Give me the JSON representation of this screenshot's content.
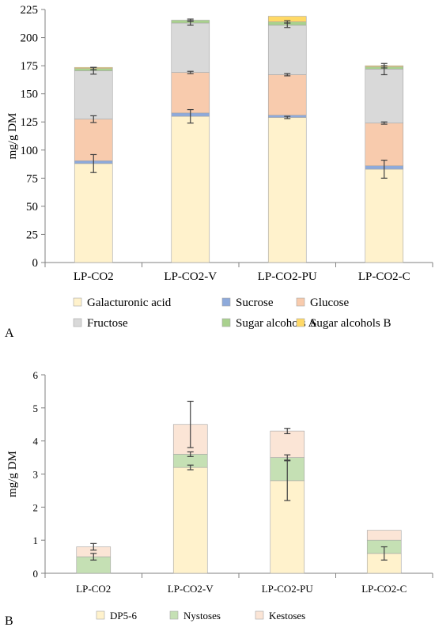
{
  "colors": {
    "Galacturonic acid": "#fff2cc",
    "Sucrose": "#8eaadb",
    "Glucose": "#f8cbad",
    "Fructose": "#d9d9d9",
    "Sugar alcohols A": "#a9d18e",
    "Sugar alcohols B": "#ffd966",
    "DP5-6": "#fff2cc",
    "Nystoses": "#c5e0b4",
    "Kestoses": "#fbe5d6",
    "axis": "#808080",
    "errorbar": "#404040"
  },
  "chart_data": [
    {
      "panel_label": "A",
      "type": "bar",
      "stacked": true,
      "ylabel": "mg/g DM",
      "xlabel": "",
      "ylim": [
        0,
        225
      ],
      "yticks": [
        0,
        25,
        50,
        75,
        100,
        125,
        150,
        175,
        200,
        225
      ],
      "categories": [
        "LP-CO2",
        "LP-CO2-V",
        "LP-CO2-PU",
        "LP-CO2-C"
      ],
      "series": [
        {
          "name": "Galacturonic acid",
          "values": [
            88,
            130,
            129,
            83
          ],
          "errors": [
            8,
            6,
            1,
            8
          ]
        },
        {
          "name": "Sucrose",
          "values": [
            2.5,
            3,
            2,
            3
          ],
          "errors": [
            null,
            null,
            null,
            null
          ]
        },
        {
          "name": "Glucose",
          "values": [
            37,
            36,
            36,
            38
          ],
          "errors": [
            3,
            1,
            1,
            1
          ]
        },
        {
          "name": "Fructose",
          "values": [
            43,
            44,
            44,
            48
          ],
          "errors": [
            3,
            2,
            2,
            5
          ]
        },
        {
          "name": "Sugar alcohols A",
          "values": [
            2,
            2.5,
            3,
            2
          ],
          "errors": [
            1,
            1,
            1,
            1
          ]
        },
        {
          "name": "Sugar alcohols B",
          "values": [
            1,
            0,
            5,
            1
          ],
          "errors": [
            null,
            null,
            null,
            null
          ]
        }
      ],
      "legend_position": "bottom"
    },
    {
      "panel_label": "B",
      "type": "bar",
      "stacked": true,
      "ylabel": "mg/g  DM",
      "xlabel": "",
      "ylim": [
        0,
        6
      ],
      "yticks": [
        0,
        1,
        2,
        3,
        4,
        5,
        6
      ],
      "categories": [
        "LP-CO2",
        "LP-CO2-V",
        "LP-CO2-PU",
        "LP-CO2-C"
      ],
      "series": [
        {
          "name": "DP5-6",
          "values": [
            0,
            3.2,
            2.8,
            0.6
          ],
          "errors": [
            null,
            0.07,
            0.6,
            0.2
          ]
        },
        {
          "name": "Nystoses",
          "values": [
            0.5,
            0.4,
            0.7,
            0.4
          ],
          "errors": [
            0.1,
            0.07,
            0.08,
            null
          ]
        },
        {
          "name": "Kestoses",
          "values": [
            0.3,
            0.9,
            0.8,
            0.3
          ],
          "errors": [
            0.1,
            0.7,
            0.08,
            null
          ]
        }
      ],
      "legend_position": "bottom"
    }
  ]
}
